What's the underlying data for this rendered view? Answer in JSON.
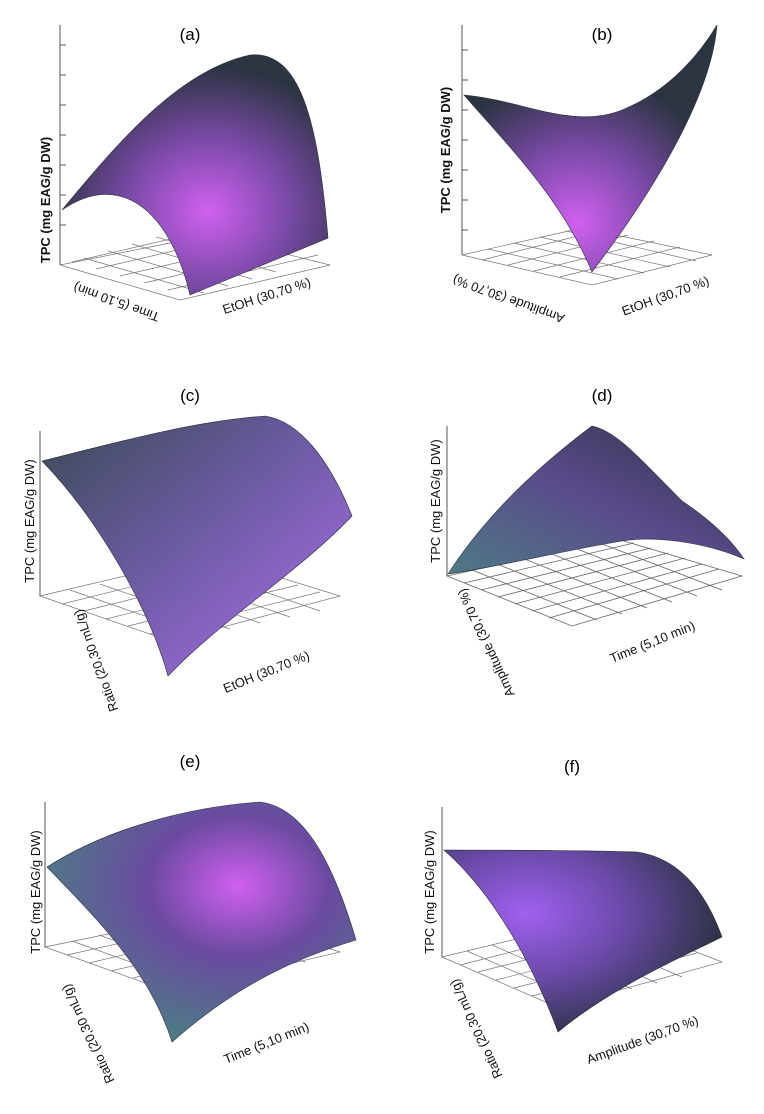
{
  "figure": {
    "panels": [
      {
        "id": "a",
        "title": "(a)",
        "zlabel": "TPC (mg EAG/g DW)",
        "xlabel": "Time (5,10 min)",
        "ylabel": "EtOH (30,70 %)"
      },
      {
        "id": "b",
        "title": "(b)",
        "zlabel": "TPC (mg EAG/g DW)",
        "xlabel": "Amplitude (30,70 %)",
        "ylabel": "EtOH (30,70 %)"
      },
      {
        "id": "c",
        "title": "(c)",
        "zlabel": "TPC (mg EAG/g DW)",
        "xlabel": "Ratio (20,30 mL/g)",
        "ylabel": "EtOH (30,70 %)"
      },
      {
        "id": "d",
        "title": "(d)",
        "zlabel": "TPC (mg EAG/g DW)",
        "xlabel": "Amplitude (30,70 %)",
        "ylabel": "Time (5,10 min)"
      },
      {
        "id": "e",
        "title": "(e)",
        "zlabel": "TPC (mg EAG/g DW)",
        "xlabel": "Ratio (20,30 mL/g)",
        "ylabel": "Time (5,10 min)"
      },
      {
        "id": "f",
        "title": "(f)",
        "zlabel": "TPC (mg EAG/g DW)",
        "xlabel": "Ratio (20,30 mL/g)",
        "ylabel": "Amplitude (30,70 %)"
      }
    ]
  },
  "chart_data": [
    {
      "type": "surface",
      "title": "(a)",
      "zlabel": "TPC (mg EAG/g DW)",
      "xlabel": "Time (5,10 min)",
      "ylabel": "EtOH (30,70 %)",
      "shape": "concave-down dome",
      "colors": [
        "#2c3442",
        "#7a4aa8",
        "#d060f0"
      ]
    },
    {
      "type": "surface",
      "title": "(b)",
      "zlabel": "TPC (mg EAG/g DW)",
      "xlabel": "Amplitude (30,70 %)",
      "ylabel": "EtOH (30,70 %)",
      "shape": "saddle / V-shaped",
      "colors": [
        "#2c3442",
        "#7a4aa8",
        "#d060f0"
      ]
    },
    {
      "type": "surface",
      "title": "(c)",
      "zlabel": "TPC (mg EAG/g DW)",
      "xlabel": "Ratio (20,30 mL/g)",
      "ylabel": "EtOH (30,70 %)",
      "shape": "concave-down along EtOH",
      "colors": [
        "#3b4a55",
        "#6a5aa0",
        "#b070f0"
      ]
    },
    {
      "type": "surface",
      "title": "(d)",
      "zlabel": "TPC (mg EAG/g DW)",
      "xlabel": "Amplitude (30,70 %)",
      "ylabel": "Time (5,10 min)",
      "shape": "ridge",
      "colors": [
        "#4e7a86",
        "#5a4a8a",
        "#2e3346"
      ]
    },
    {
      "type": "surface",
      "title": "(e)",
      "zlabel": "TPC (mg EAG/g DW)",
      "xlabel": "Ratio (20,30 mL/g)",
      "ylabel": "Time (5,10 min)",
      "shape": "dome",
      "colors": [
        "#4e7a86",
        "#6a4aa0",
        "#d060f0"
      ]
    },
    {
      "type": "surface",
      "title": "(f)",
      "zlabel": "TPC (mg EAG/g DW)",
      "xlabel": "Ratio (20,30 mL/g)",
      "ylabel": "Amplitude (30,70 %)",
      "shape": "curved sheet",
      "colors": [
        "#2e3346",
        "#6a4aa8",
        "#a060f0"
      ]
    }
  ]
}
